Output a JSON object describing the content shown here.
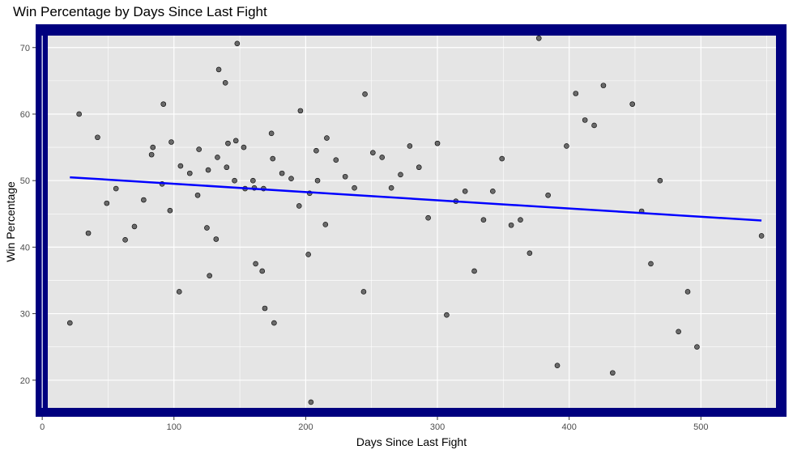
{
  "chart_data": {
    "type": "scatter",
    "title": "Win Percentage by Days Since Last Fight",
    "xlabel": "Days Since Last Fight",
    "ylabel": "Win Percentage",
    "xlim": [
      -5,
      565
    ],
    "ylim": [
      14.5,
      73.5
    ],
    "x_ticks": [
      0,
      100,
      200,
      300,
      400,
      500
    ],
    "y_ticks": [
      20,
      30,
      40,
      50,
      60,
      70
    ],
    "grid": true,
    "colors": {
      "panel_border": "#00007f",
      "panel_background": "#e5e5e5",
      "gridline": "#ffffff",
      "point_fill": "#555555",
      "point_stroke": "#000000",
      "trend_line": "#0000ff"
    },
    "trend_line": {
      "x": [
        21,
        546
      ],
      "y": [
        50.5,
        44.0
      ]
    },
    "points": [
      {
        "x": 21,
        "y": 28.6
      },
      {
        "x": 28,
        "y": 60.0
      },
      {
        "x": 35,
        "y": 42.1
      },
      {
        "x": 42,
        "y": 56.5
      },
      {
        "x": 49,
        "y": 46.6
      },
      {
        "x": 56,
        "y": 48.8
      },
      {
        "x": 63,
        "y": 41.1
      },
      {
        "x": 70,
        "y": 43.1
      },
      {
        "x": 77,
        "y": 47.1
      },
      {
        "x": 83,
        "y": 53.9
      },
      {
        "x": 84,
        "y": 55.0
      },
      {
        "x": 91,
        "y": 49.5
      },
      {
        "x": 92,
        "y": 61.5
      },
      {
        "x": 97,
        "y": 45.5
      },
      {
        "x": 98,
        "y": 55.8
      },
      {
        "x": 104,
        "y": 33.3
      },
      {
        "x": 105,
        "y": 52.2
      },
      {
        "x": 112,
        "y": 51.1
      },
      {
        "x": 118,
        "y": 47.8
      },
      {
        "x": 119,
        "y": 54.7
      },
      {
        "x": 125,
        "y": 42.9
      },
      {
        "x": 126,
        "y": 51.6
      },
      {
        "x": 127,
        "y": 35.7
      },
      {
        "x": 132,
        "y": 41.2
      },
      {
        "x": 133,
        "y": 53.5
      },
      {
        "x": 134,
        "y": 66.7
      },
      {
        "x": 139,
        "y": 64.7
      },
      {
        "x": 140,
        "y": 52.0
      },
      {
        "x": 141,
        "y": 55.6
      },
      {
        "x": 146,
        "y": 50.0
      },
      {
        "x": 147,
        "y": 56.0
      },
      {
        "x": 148,
        "y": 70.6
      },
      {
        "x": 153,
        "y": 55.0
      },
      {
        "x": 154,
        "y": 48.8
      },
      {
        "x": 160,
        "y": 50.0
      },
      {
        "x": 161,
        "y": 48.9
      },
      {
        "x": 162,
        "y": 37.5
      },
      {
        "x": 167,
        "y": 36.4
      },
      {
        "x": 168,
        "y": 48.8
      },
      {
        "x": 169,
        "y": 30.8
      },
      {
        "x": 174,
        "y": 57.1
      },
      {
        "x": 175,
        "y": 53.3
      },
      {
        "x": 176,
        "y": 28.6
      },
      {
        "x": 182,
        "y": 51.1
      },
      {
        "x": 189,
        "y": 50.3
      },
      {
        "x": 195,
        "y": 46.2
      },
      {
        "x": 196,
        "y": 60.5
      },
      {
        "x": 202,
        "y": 38.9
      },
      {
        "x": 203,
        "y": 48.1
      },
      {
        "x": 204,
        "y": 16.7
      },
      {
        "x": 208,
        "y": 54.5
      },
      {
        "x": 209,
        "y": 50.0
      },
      {
        "x": 215,
        "y": 43.4
      },
      {
        "x": 216,
        "y": 56.4
      },
      {
        "x": 223,
        "y": 53.1
      },
      {
        "x": 230,
        "y": 50.6
      },
      {
        "x": 237,
        "y": 48.9
      },
      {
        "x": 244,
        "y": 33.3
      },
      {
        "x": 245,
        "y": 63.0
      },
      {
        "x": 251,
        "y": 54.2
      },
      {
        "x": 258,
        "y": 53.5
      },
      {
        "x": 265,
        "y": 48.9
      },
      {
        "x": 272,
        "y": 50.9
      },
      {
        "x": 279,
        "y": 55.2
      },
      {
        "x": 286,
        "y": 52.0
      },
      {
        "x": 293,
        "y": 44.4
      },
      {
        "x": 300,
        "y": 55.6
      },
      {
        "x": 307,
        "y": 29.8
      },
      {
        "x": 314,
        "y": 46.9
      },
      {
        "x": 321,
        "y": 48.4
      },
      {
        "x": 328,
        "y": 36.4
      },
      {
        "x": 335,
        "y": 44.1
      },
      {
        "x": 342,
        "y": 48.4
      },
      {
        "x": 349,
        "y": 53.3
      },
      {
        "x": 356,
        "y": 43.3
      },
      {
        "x": 363,
        "y": 44.1
      },
      {
        "x": 370,
        "y": 39.1
      },
      {
        "x": 377,
        "y": 71.4
      },
      {
        "x": 384,
        "y": 47.8
      },
      {
        "x": 391,
        "y": 22.2
      },
      {
        "x": 398,
        "y": 55.2
      },
      {
        "x": 405,
        "y": 63.1
      },
      {
        "x": 412,
        "y": 59.1
      },
      {
        "x": 419,
        "y": 58.3
      },
      {
        "x": 426,
        "y": 64.3
      },
      {
        "x": 433,
        "y": 21.1
      },
      {
        "x": 448,
        "y": 61.5
      },
      {
        "x": 455,
        "y": 45.4
      },
      {
        "x": 462,
        "y": 37.5
      },
      {
        "x": 469,
        "y": 50.0
      },
      {
        "x": 483,
        "y": 27.3
      },
      {
        "x": 490,
        "y": 33.3
      },
      {
        "x": 497,
        "y": 25.0
      },
      {
        "x": 546,
        "y": 41.7
      }
    ]
  }
}
